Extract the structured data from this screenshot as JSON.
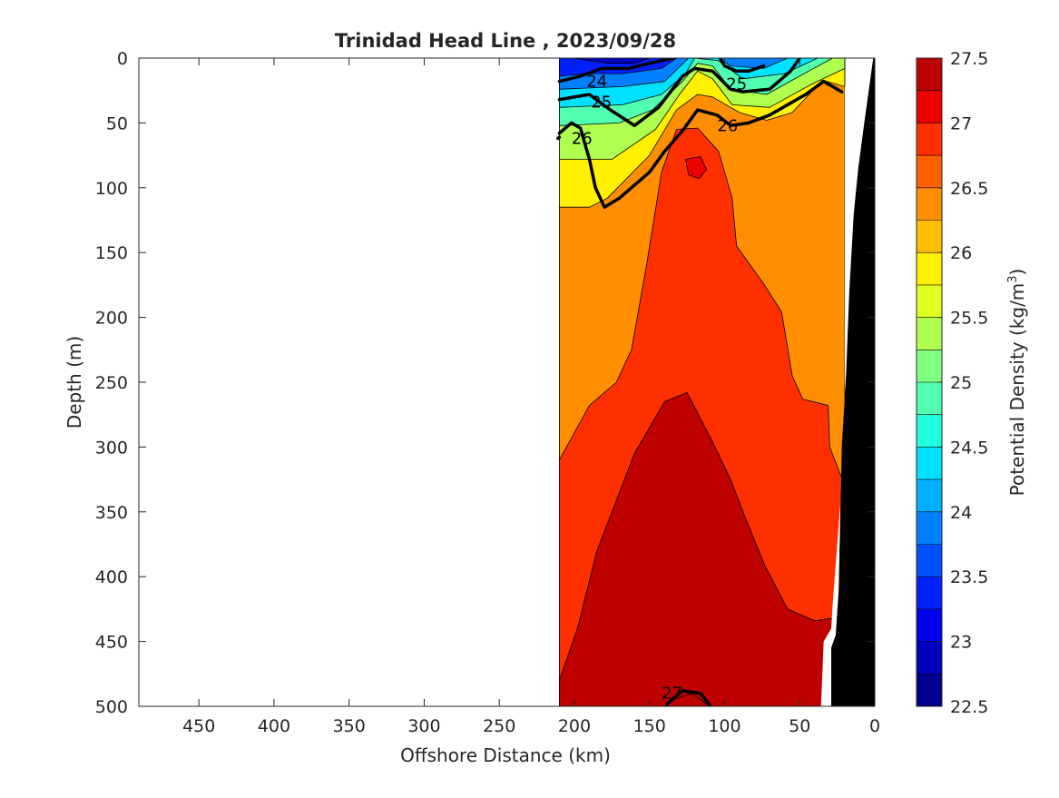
{
  "chart_data": {
    "type": "heatmap",
    "subtype": "filled-contour",
    "title": "Trinidad Head Line , 2023/09/28",
    "xlabel": "Offshore Distance (km)",
    "ylabel": "Depth (m)",
    "xlim": [
      490,
      0
    ],
    "x_reversed": true,
    "ylim": [
      0,
      500
    ],
    "y_reversed": true,
    "x_ticks": [
      450,
      400,
      350,
      300,
      250,
      200,
      150,
      100,
      50,
      0
    ],
    "y_ticks": [
      0,
      50,
      100,
      150,
      200,
      250,
      300,
      350,
      400,
      450,
      500
    ],
    "colorbar": {
      "label": "Potential Density (kg/m",
      "label_sup": "3",
      "label_suffix": ")",
      "min": 22.5,
      "max": 27.5,
      "step": 0.25,
      "tick_values": [
        22.5,
        23,
        23.5,
        24,
        24.5,
        25,
        25.5,
        26,
        26.5,
        27,
        27.5
      ],
      "colors": [
        "#00008f",
        "#0000bf",
        "#0000ef",
        "#0020ff",
        "#0050ff",
        "#0080ff",
        "#00b0ff",
        "#00e0ff",
        "#20ffdf",
        "#50ffaf",
        "#80ff80",
        "#afff50",
        "#dfff20",
        "#ffef00",
        "#ffbf00",
        "#ff8f00",
        "#ff6000",
        "#ff3000",
        "#ef0000",
        "#bf0000"
      ]
    },
    "data_extent_km": [
      210,
      20
    ],
    "contour_labels": [
      {
        "text": "24",
        "x": 185,
        "y": 18
      },
      {
        "text": "25",
        "x": 182,
        "y": 34
      },
      {
        "text": "25",
        "x": 92,
        "y": 20
      },
      {
        "text": "26",
        "x": 98,
        "y": 52
      },
      {
        "text": "26",
        "x": 195,
        "y": 62
      },
      {
        "text": "27",
        "x": 135,
        "y": 490
      }
    ],
    "regions": [
      {
        "level": 26.25,
        "points": [
          [
            210,
            0
          ],
          [
            20,
            0
          ],
          [
            20,
            500
          ],
          [
            210,
            500
          ]
        ]
      },
      {
        "level": 26.75,
        "points": [
          [
            210,
            510
          ],
          [
            210,
            310
          ],
          [
            190,
            268
          ],
          [
            172,
            250
          ],
          [
            162,
            225
          ],
          [
            152,
            160
          ],
          [
            142,
            88
          ],
          [
            132,
            55
          ],
          [
            118,
            54
          ],
          [
            104,
            72
          ],
          [
            95,
            108
          ],
          [
            92,
            145
          ],
          [
            74,
            174
          ],
          [
            62,
            196
          ],
          [
            55,
            245
          ],
          [
            48,
            263
          ],
          [
            31,
            268
          ],
          [
            30,
            300
          ],
          [
            20,
            330
          ],
          [
            20,
            510
          ]
        ]
      },
      {
        "level": 27.25,
        "points": [
          [
            210,
            510
          ],
          [
            210,
            480
          ],
          [
            198,
            440
          ],
          [
            185,
            380
          ],
          [
            160,
            305
          ],
          [
            140,
            265
          ],
          [
            125,
            258
          ],
          [
            108,
            296
          ],
          [
            96,
            325
          ],
          [
            85,
            358
          ],
          [
            73,
            392
          ],
          [
            58,
            425
          ],
          [
            40,
            434
          ],
          [
            28,
            432
          ],
          [
            25,
            510
          ]
        ]
      },
      {
        "level": 27.75,
        "points": [
          [
            140,
            510
          ],
          [
            137,
            496
          ],
          [
            122,
            490
          ],
          [
            110,
            500
          ],
          [
            108,
            510
          ]
        ]
      },
      {
        "level": 27.0,
        "points": [
          [
            126,
            78
          ],
          [
            116,
            76
          ],
          [
            112,
            86
          ],
          [
            117,
            93
          ],
          [
            124,
            90
          ]
        ]
      },
      {
        "level": 25.75,
        "points": [
          [
            210,
            0
          ],
          [
            20,
            0
          ],
          [
            20,
            22
          ],
          [
            35,
            17
          ],
          [
            55,
            42
          ],
          [
            72,
            48
          ],
          [
            90,
            42
          ],
          [
            108,
            30
          ],
          [
            118,
            28
          ],
          [
            132,
            40
          ],
          [
            150,
            75
          ],
          [
            178,
            108
          ],
          [
            190,
            115
          ],
          [
            210,
            115
          ]
        ]
      },
      {
        "level": 25.25,
        "points": [
          [
            210,
            0
          ],
          [
            20,
            0
          ],
          [
            20,
            8
          ],
          [
            42,
            20
          ],
          [
            70,
            38
          ],
          [
            95,
            36
          ],
          [
            108,
            16
          ],
          [
            118,
            10
          ],
          [
            130,
            28
          ],
          [
            146,
            55
          ],
          [
            175,
            78
          ],
          [
            210,
            78
          ]
        ]
      },
      {
        "level": 24.75,
        "points": [
          [
            210,
            0
          ],
          [
            28,
            0
          ],
          [
            44,
            10
          ],
          [
            72,
            28
          ],
          [
            96,
            24
          ],
          [
            108,
            6
          ],
          [
            118,
            4
          ],
          [
            128,
            18
          ],
          [
            148,
            40
          ],
          [
            170,
            50
          ],
          [
            210,
            52
          ]
        ]
      },
      {
        "level": 24.25,
        "points": [
          [
            210,
            0
          ],
          [
            38,
            0
          ],
          [
            60,
            12
          ],
          [
            88,
            16
          ],
          [
            104,
            2
          ],
          [
            120,
            0
          ],
          [
            126,
            12
          ],
          [
            142,
            28
          ],
          [
            168,
            36
          ],
          [
            210,
            38
          ]
        ]
      },
      {
        "level": 23.75,
        "points": [
          [
            210,
            0
          ],
          [
            58,
            0
          ],
          [
            74,
            8
          ],
          [
            96,
            6
          ],
          [
            104,
            0
          ],
          [
            124,
            0
          ],
          [
            140,
            18
          ],
          [
            168,
            22
          ],
          [
            210,
            24
          ]
        ]
      },
      {
        "level": 23.25,
        "points": [
          [
            210,
            0
          ],
          [
            132,
            0
          ],
          [
            142,
            8
          ],
          [
            168,
            12
          ],
          [
            192,
            12
          ],
          [
            210,
            14
          ]
        ]
      },
      {
        "level": 22.75,
        "points": [
          [
            200,
            0
          ],
          [
            150,
            0
          ],
          [
            160,
            4
          ],
          [
            178,
            4
          ]
        ]
      }
    ],
    "contour_lines": [
      {
        "level": 26,
        "bold": true,
        "points": [
          [
            210,
            58
          ],
          [
            202,
            50
          ],
          [
            196,
            54
          ],
          [
            190,
            78
          ],
          [
            186,
            100
          ],
          [
            180,
            115
          ],
          [
            170,
            108
          ],
          [
            150,
            88
          ],
          [
            140,
            72
          ],
          [
            128,
            56
          ],
          [
            118,
            40
          ],
          [
            105,
            44
          ],
          [
            96,
            52
          ],
          [
            84,
            50
          ],
          [
            70,
            44
          ],
          [
            46,
            28
          ],
          [
            34,
            18
          ],
          [
            22,
            26
          ]
        ]
      },
      {
        "level": 26,
        "bold": true,
        "points": [
          [
            211,
            62
          ],
          [
            210,
            61
          ]
        ]
      },
      {
        "level": 25,
        "bold": true,
        "points": [
          [
            210,
            32
          ],
          [
            190,
            28
          ],
          [
            176,
            40
          ],
          [
            160,
            52
          ],
          [
            144,
            38
          ],
          [
            128,
            14
          ],
          [
            120,
            8
          ],
          [
            108,
            10
          ],
          [
            96,
            24
          ],
          [
            88,
            26
          ],
          [
            70,
            24
          ],
          [
            56,
            10
          ],
          [
            50,
            0
          ]
        ]
      },
      {
        "level": 24,
        "bold": true,
        "points": [
          [
            210,
            18
          ],
          [
            196,
            14
          ],
          [
            182,
            8
          ],
          [
            164,
            8
          ],
          [
            150,
            4
          ],
          [
            134,
            0
          ]
        ]
      },
      {
        "level": 24,
        "bold": true,
        "points": [
          [
            103,
            0
          ],
          [
            100,
            6
          ],
          [
            92,
            10
          ],
          [
            84,
            10
          ],
          [
            74,
            6
          ]
        ]
      },
      {
        "level": 27,
        "bold": true,
        "points": [
          [
            142,
            510
          ],
          [
            138,
            498
          ],
          [
            128,
            488
          ],
          [
            116,
            490
          ],
          [
            108,
            502
          ],
          [
            106,
            510
          ]
        ]
      }
    ],
    "bathymetry": {
      "color": "#000000",
      "points": [
        [
          1,
          0
        ],
        [
          0,
          0
        ],
        [
          0,
          505
        ],
        [
          29,
          505
        ],
        [
          29,
          455
        ],
        [
          26,
          445
        ],
        [
          24,
          410
        ],
        [
          22,
          300
        ],
        [
          19,
          240
        ],
        [
          17,
          180
        ],
        [
          14,
          120
        ],
        [
          11,
          85
        ],
        [
          7,
          50
        ]
      ]
    },
    "white_gap": {
      "points": [
        [
          20,
          22
        ],
        [
          8,
          0
        ],
        [
          1,
          0
        ],
        [
          7,
          50
        ],
        [
          11,
          85
        ],
        [
          14,
          120
        ],
        [
          17,
          180
        ],
        [
          19,
          240
        ],
        [
          22,
          300
        ],
        [
          24,
          410
        ],
        [
          26,
          445
        ],
        [
          29,
          455
        ],
        [
          29,
          505
        ],
        [
          36,
          505
        ],
        [
          34,
          450
        ],
        [
          29,
          440
        ],
        [
          28,
          420
        ],
        [
          22,
          330
        ],
        [
          20,
          300
        ]
      ]
    }
  }
}
